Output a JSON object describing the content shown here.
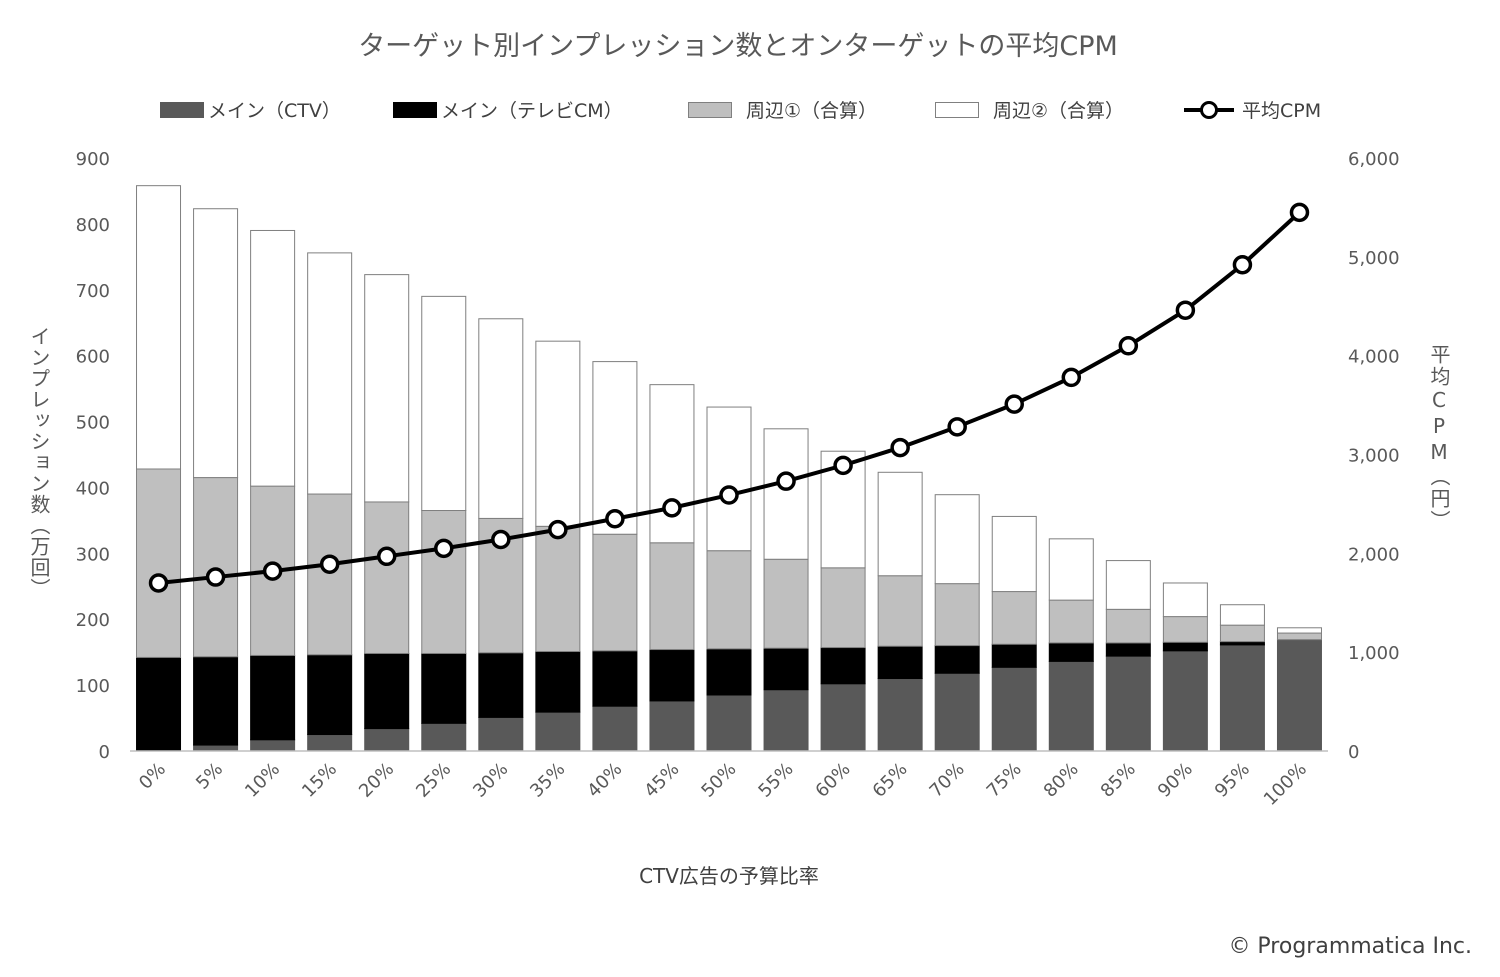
{
  "copyright": "© Programmatica Inc.",
  "chart_data": {
    "type": "bar",
    "stacked": true,
    "title": "ターゲット別インプレッション数とオンターゲットの平均CPM",
    "xlabel": "CTV広告の予算比率",
    "ylabel": "インプレッション数（万回）",
    "y2label": "平均CPM（円）",
    "ylim": [
      0,
      900
    ],
    "y2lim": [
      0,
      6000
    ],
    "yticks": [
      "0",
      "100",
      "200",
      "300",
      "400",
      "500",
      "600",
      "700",
      "800",
      "900"
    ],
    "y2ticks": [
      "0",
      "1,000",
      "2,000",
      "3,000",
      "4,000",
      "5,000",
      "6,000"
    ],
    "grid": false,
    "legend_position": "top",
    "categories": [
      "0%",
      "5%",
      "10%",
      "15%",
      "20%",
      "25%",
      "30%",
      "35%",
      "40%",
      "45%",
      "50%",
      "55%",
      "60%",
      "65%",
      "70%",
      "75%",
      "80%",
      "85%",
      "90%",
      "95%",
      "100%"
    ],
    "series": [
      {
        "name": "メイン（CTV）",
        "type": "bar",
        "color": "#595959",
        "values": [
          0,
          9,
          17,
          25,
          34,
          42,
          51,
          59,
          68,
          76,
          85,
          93,
          102,
          110,
          118,
          127,
          136,
          144,
          152,
          161,
          169
        ]
      },
      {
        "name": "メイン（テレビCM）",
        "type": "bar",
        "color": "#000000",
        "values": [
          142,
          134,
          128,
          121,
          114,
          106,
          98,
          92,
          84,
          78,
          70,
          63,
          55,
          49,
          42,
          35,
          28,
          20,
          13,
          5,
          0
        ]
      },
      {
        "name": "周辺①（合算）",
        "type": "bar",
        "color": "#bfbfbf",
        "values": [
          286,
          272,
          257,
          244,
          230,
          217,
          204,
          190,
          177,
          162,
          149,
          135,
          121,
          107,
          94,
          80,
          65,
          51,
          39,
          25,
          10
        ]
      },
      {
        "name": "周辺②（合算）",
        "type": "bar",
        "color": "#ffffff",
        "values": [
          430,
          408,
          388,
          366,
          345,
          325,
          303,
          281,
          262,
          240,
          218,
          198,
          177,
          157,
          135,
          114,
          93,
          74,
          51,
          31,
          8
        ]
      },
      {
        "name": "平均CPM",
        "type": "line",
        "axis": "right",
        "color": "#000000",
        "values": [
          1700,
          1760,
          1820,
          1890,
          1970,
          2050,
          2140,
          2240,
          2350,
          2460,
          2590,
          2730,
          2890,
          3070,
          3280,
          3510,
          3780,
          4100,
          4460,
          4920,
          5450
        ]
      }
    ]
  }
}
